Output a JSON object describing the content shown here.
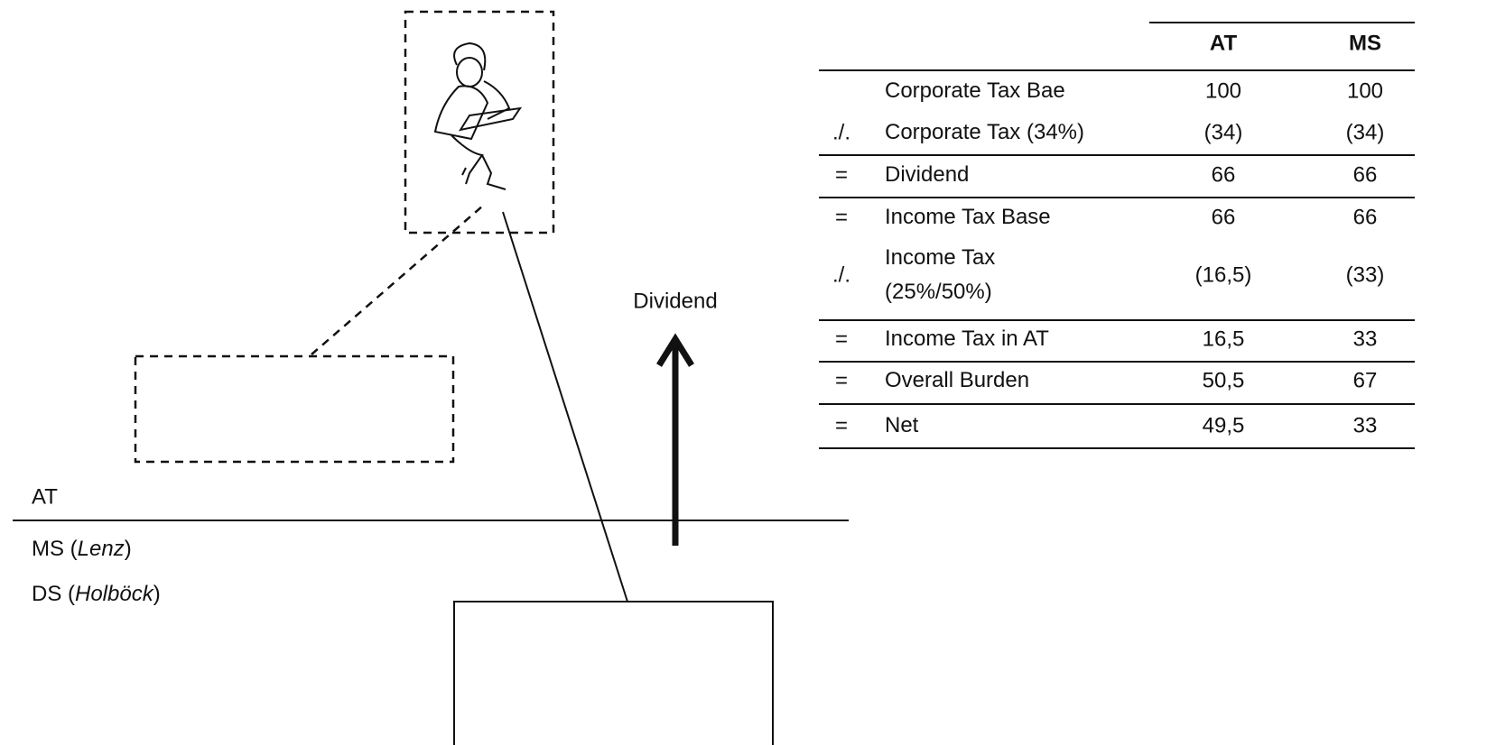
{
  "diagram": {
    "flow_label": "Dividend",
    "border": {
      "upper": "AT",
      "lower": [
        {
          "prefix": "MS (",
          "italic": "Lenz",
          "suffix": ")"
        },
        {
          "prefix": "DS (",
          "italic": "Holböck",
          "suffix": ")"
        }
      ]
    }
  },
  "table": {
    "header": [
      "AT",
      "MS"
    ],
    "rows": [
      {
        "label": [
          "Corporate Tax Bae"
        ],
        "at": "100",
        "ms": "100"
      },
      {
        "op": "./.",
        "label": [
          "Corporate Tax (34%)"
        ],
        "at": "(34)",
        "ms": "(34)"
      },
      {
        "op": "=",
        "label": [
          "Dividend"
        ],
        "at": "66",
        "ms": "66"
      },
      {
        "op": "=",
        "label": [
          "Income Tax Base"
        ],
        "at": "66",
        "ms": "66"
      },
      {
        "op": "./.",
        "label": [
          "Income Tax",
          "(25%/50%)"
        ],
        "at": "(16,5)",
        "ms": "(33)"
      },
      {
        "op": "=",
        "label": [
          "Income Tax in AT"
        ],
        "at": "16,5",
        "ms": "33"
      },
      {
        "op": "=",
        "label": [
          "Overall Burden"
        ],
        "at": "50,5",
        "ms": "67"
      },
      {
        "op": "=",
        "label": [
          "Net"
        ],
        "at": "49,5",
        "ms": "33"
      }
    ]
  }
}
